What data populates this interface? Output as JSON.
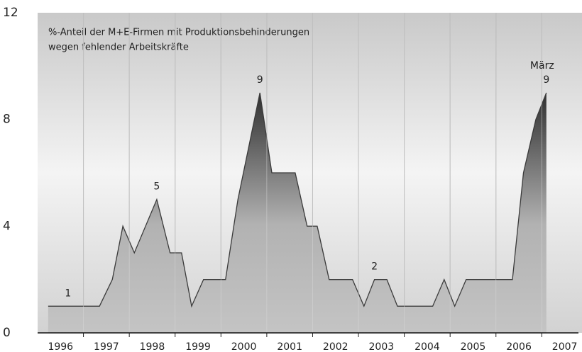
{
  "chart_data": {
    "type": "area",
    "title": "%-Anteil der M+E-Firmen mit Produktionsbehinderungen",
    "subtitle": "wegen fehlender Arbeitskräfte",
    "x": [
      1996.23,
      1997.35,
      1997.63,
      1997.86,
      1998.11,
      1998.6,
      1998.89,
      1999.14,
      1999.36,
      1999.62,
      2000.1,
      2000.37,
      2000.85,
      2001.11,
      2001.62,
      2001.88,
      2002.1,
      2002.36,
      2002.87,
      2003.12,
      2003.35,
      2003.62,
      2003.85,
      2004.62,
      2004.87,
      2005.1,
      2005.35,
      2006.36,
      2006.6,
      2006.87,
      2007.1
    ],
    "values": [
      1,
      1,
      2,
      4,
      3,
      5,
      3,
      3,
      1,
      2,
      2,
      5,
      9,
      6,
      6,
      4,
      4,
      2,
      2,
      1,
      2,
      2,
      1,
      1,
      2,
      1,
      2,
      2,
      6,
      8,
      9
    ],
    "value_labels": [
      "1",
      null,
      null,
      null,
      null,
      "5",
      null,
      null,
      null,
      null,
      null,
      null,
      "9",
      null,
      null,
      null,
      null,
      null,
      null,
      null,
      "2",
      null,
      null,
      null,
      null,
      null,
      null,
      null,
      null,
      null,
      "9"
    ],
    "annotation": "März",
    "color": "#3a3a3a",
    "xlim": [
      1996,
      2007.8
    ],
    "xticks": [
      {
        "value": 1996.5,
        "label": "1996"
      },
      {
        "value": 1997.5,
        "label": "1997"
      },
      {
        "value": 1998.5,
        "label": "1998"
      },
      {
        "value": 1999.5,
        "label": "1999"
      },
      {
        "value": 2000.5,
        "label": "2000"
      },
      {
        "value": 2001.5,
        "label": "2001"
      },
      {
        "value": 2002.5,
        "label": "2002"
      },
      {
        "value": 2003.5,
        "label": "2003"
      },
      {
        "value": 2004.5,
        "label": "2004"
      },
      {
        "value": 2005.5,
        "label": "2005"
      },
      {
        "value": 2006.5,
        "label": "2006"
      },
      {
        "value": 2007.5,
        "label": "2007"
      }
    ],
    "xgrid": [
      1997,
      1998,
      1999,
      2000,
      2001,
      2002,
      2003,
      2004,
      2005,
      2006,
      2007
    ],
    "ylim": [
      0,
      12
    ],
    "yticks": [
      0,
      4,
      8,
      12
    ]
  }
}
